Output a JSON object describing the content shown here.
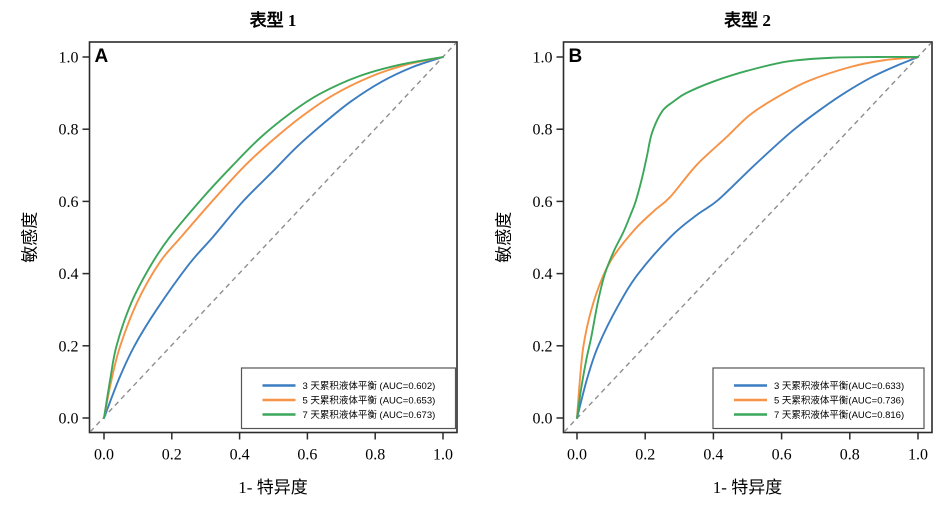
{
  "figure": {
    "background": "#ffffff",
    "text_color": "#000000",
    "axis_color": "#2b2b2b",
    "diagonal_color": "#8e8e8e"
  },
  "chart_data": [
    {
      "type": "line",
      "subtype": "roc-curves",
      "panel_label": "A",
      "title": "表型 1",
      "xlabel": "1- 特异度",
      "ylabel": "敏感度",
      "xlim": [
        0,
        1
      ],
      "ylim": [
        0,
        1
      ],
      "x_ticks": [
        "0.0",
        "0.2",
        "0.4",
        "0.6",
        "0.8",
        "1.0"
      ],
      "y_ticks": [
        "0.0",
        "0.2",
        "0.4",
        "0.6",
        "0.8",
        "1.0"
      ],
      "grid": false,
      "legend_position": "bottom-right",
      "diagonal_reference": {
        "style": "dashed",
        "color": "#8e8e8e"
      },
      "series": [
        {
          "name": "3 天累积液体平衡 (AUC=0.602)",
          "auc": 0.602,
          "color": "#3c7dc1",
          "points": [
            [
              0,
              0
            ],
            [
              0.045,
              0.11
            ],
            [
              0.09,
              0.2
            ],
            [
              0.155,
              0.3
            ],
            [
              0.25,
              0.425
            ],
            [
              0.32,
              0.5
            ],
            [
              0.41,
              0.6
            ],
            [
              0.5,
              0.685
            ],
            [
              0.57,
              0.752
            ],
            [
              0.655,
              0.822
            ],
            [
              0.73,
              0.878
            ],
            [
              0.82,
              0.932
            ],
            [
              0.91,
              0.972
            ],
            [
              1,
              1
            ]
          ]
        },
        {
          "name": "5 天累积液体平衡 (AUC=0.653)",
          "auc": 0.653,
          "color": "#f79346",
          "points": [
            [
              0,
              0
            ],
            [
              0.022,
              0.105
            ],
            [
              0.048,
              0.2
            ],
            [
              0.1,
              0.325
            ],
            [
              0.165,
              0.432
            ],
            [
              0.226,
              0.5
            ],
            [
              0.33,
              0.612
            ],
            [
              0.42,
              0.703
            ],
            [
              0.504,
              0.775
            ],
            [
              0.59,
              0.84
            ],
            [
              0.677,
              0.895
            ],
            [
              0.78,
              0.943
            ],
            [
              0.885,
              0.977
            ],
            [
              1,
              1
            ]
          ]
        },
        {
          "name": "7 天累积液体平衡 (AUC=0.673)",
          "auc": 0.673,
          "color": "#3ca75a",
          "points": [
            [
              0,
              0
            ],
            [
              0.018,
              0.105
            ],
            [
              0.037,
              0.2
            ],
            [
              0.08,
              0.318
            ],
            [
              0.135,
              0.418
            ],
            [
              0.193,
              0.5
            ],
            [
              0.293,
              0.612
            ],
            [
              0.38,
              0.7
            ],
            [
              0.463,
              0.778
            ],
            [
              0.555,
              0.848
            ],
            [
              0.637,
              0.898
            ],
            [
              0.75,
              0.946
            ],
            [
              0.87,
              0.978
            ],
            [
              1,
              1
            ]
          ]
        }
      ]
    },
    {
      "type": "line",
      "subtype": "roc-curves",
      "panel_label": "B",
      "title": "表型 2",
      "xlabel": "1- 特异度",
      "ylabel": "敏感度",
      "xlim": [
        0,
        1
      ],
      "ylim": [
        0,
        1
      ],
      "x_ticks": [
        "0.0",
        "0.2",
        "0.4",
        "0.6",
        "0.8",
        "1.0"
      ],
      "y_ticks": [
        "0.0",
        "0.2",
        "0.4",
        "0.6",
        "0.8",
        "1.0"
      ],
      "grid": false,
      "legend_position": "bottom-right",
      "diagonal_reference": {
        "style": "dashed",
        "color": "#8e8e8e"
      },
      "series": [
        {
          "name": "3 天累积液体平衡(AUC=0.633)",
          "auc": 0.633,
          "color": "#3c7dc1",
          "points": [
            [
              0,
              0
            ],
            [
              0.03,
              0.11
            ],
            [
              0.0625,
              0.2
            ],
            [
              0.12,
              0.31
            ],
            [
              0.18,
              0.4
            ],
            [
              0.278,
              0.505
            ],
            [
              0.355,
              0.565
            ],
            [
              0.414,
              0.604
            ],
            [
              0.52,
              0.7
            ],
            [
              0.625,
              0.79
            ],
            [
              0.7,
              0.845
            ],
            [
              0.776,
              0.895
            ],
            [
              0.86,
              0.942
            ],
            [
              0.93,
              0.973
            ],
            [
              1,
              1
            ]
          ]
        },
        {
          "name": "5 天累积液体平衡(AUC=0.736)",
          "auc": 0.736,
          "color": "#f79346",
          "points": [
            [
              0,
              0
            ],
            [
              0.008,
              0.1
            ],
            [
              0.019,
              0.2
            ],
            [
              0.042,
              0.3
            ],
            [
              0.075,
              0.39
            ],
            [
              0.11,
              0.452
            ],
            [
              0.17,
              0.523
            ],
            [
              0.225,
              0.573
            ],
            [
              0.273,
              0.612
            ],
            [
              0.35,
              0.7
            ],
            [
              0.435,
              0.775
            ],
            [
              0.505,
              0.838
            ],
            [
              0.575,
              0.882
            ],
            [
              0.675,
              0.932
            ],
            [
              0.8,
              0.972
            ],
            [
              0.9,
              0.991
            ],
            [
              1,
              1
            ]
          ]
        },
        {
          "name": "7 天累积液体平衡(AUC=0.816)",
          "auc": 0.816,
          "color": "#3ca75a",
          "points": [
            [
              0,
              0
            ],
            [
              0.012,
              0.08
            ],
            [
              0.027,
              0.16
            ],
            [
              0.042,
              0.225
            ],
            [
              0.062,
              0.325
            ],
            [
              0.082,
              0.4
            ],
            [
              0.108,
              0.462
            ],
            [
              0.136,
              0.515
            ],
            [
              0.155,
              0.558
            ],
            [
              0.172,
              0.6
            ],
            [
              0.19,
              0.662
            ],
            [
              0.205,
              0.725
            ],
            [
              0.22,
              0.79
            ],
            [
              0.25,
              0.85
            ],
            [
              0.285,
              0.878
            ],
            [
              0.32,
              0.9
            ],
            [
              0.4,
              0.932
            ],
            [
              0.5,
              0.962
            ],
            [
              0.62,
              0.988
            ],
            [
              0.75,
              0.998
            ],
            [
              0.88,
              1.0
            ],
            [
              1,
              1
            ]
          ]
        }
      ]
    }
  ]
}
